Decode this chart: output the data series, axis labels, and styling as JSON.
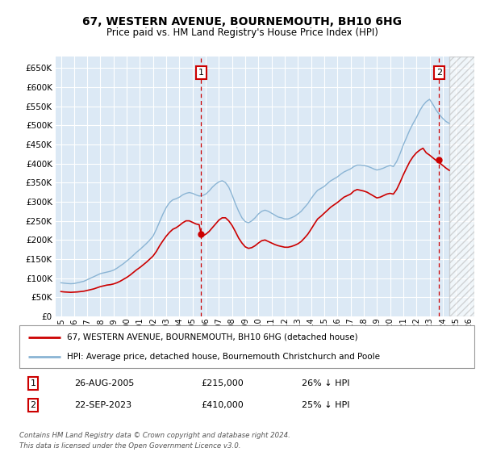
{
  "title": "67, WESTERN AVENUE, BOURNEMOUTH, BH10 6HG",
  "subtitle": "Price paid vs. HM Land Registry's House Price Index (HPI)",
  "ylim": [
    0,
    680000
  ],
  "yticks": [
    0,
    50000,
    100000,
    150000,
    200000,
    250000,
    300000,
    350000,
    400000,
    450000,
    500000,
    550000,
    600000,
    650000
  ],
  "xlim_start": 1994.6,
  "xlim_end": 2026.4,
  "background_color": "#dce9f5",
  "grid_color": "#ffffff",
  "sale1_date_label": "26-AUG-2005",
  "sale1_price": 215000,
  "sale1_hpi_pct": "26% ↓ HPI",
  "sale1_x": 2005.65,
  "sale2_date_label": "22-SEP-2023",
  "sale2_price": 410000,
  "sale2_hpi_pct": "25% ↓ HPI",
  "sale2_x": 2023.72,
  "hpi_color": "#8ab4d4",
  "price_color": "#cc0000",
  "legend_label1": "67, WESTERN AVENUE, BOURNEMOUTH, BH10 6HG (detached house)",
  "legend_label2": "HPI: Average price, detached house, Bournemouth Christchurch and Poole",
  "footer1": "Contains HM Land Registry data © Crown copyright and database right 2024.",
  "footer2": "This data is licensed under the Open Government Licence v3.0.",
  "hpi_data": [
    [
      1995.0,
      88000
    ],
    [
      1995.25,
      87000
    ],
    [
      1995.5,
      86000
    ],
    [
      1995.75,
      85500
    ],
    [
      1996.0,
      86000
    ],
    [
      1996.25,
      88000
    ],
    [
      1996.5,
      90000
    ],
    [
      1996.75,
      92000
    ],
    [
      1997.0,
      96000
    ],
    [
      1997.25,
      100000
    ],
    [
      1997.5,
      104000
    ],
    [
      1997.75,
      108000
    ],
    [
      1998.0,
      112000
    ],
    [
      1998.25,
      114000
    ],
    [
      1998.5,
      116000
    ],
    [
      1998.75,
      118000
    ],
    [
      1999.0,
      121000
    ],
    [
      1999.25,
      126000
    ],
    [
      1999.5,
      132000
    ],
    [
      1999.75,
      138000
    ],
    [
      2000.0,
      145000
    ],
    [
      2000.25,
      152000
    ],
    [
      2000.5,
      160000
    ],
    [
      2000.75,
      168000
    ],
    [
      2001.0,
      175000
    ],
    [
      2001.25,
      183000
    ],
    [
      2001.5,
      191000
    ],
    [
      2001.75,
      200000
    ],
    [
      2002.0,
      210000
    ],
    [
      2002.25,
      228000
    ],
    [
      2002.5,
      248000
    ],
    [
      2002.75,
      268000
    ],
    [
      2003.0,
      285000
    ],
    [
      2003.25,
      298000
    ],
    [
      2003.5,
      305000
    ],
    [
      2003.75,
      308000
    ],
    [
      2004.0,
      312000
    ],
    [
      2004.25,
      318000
    ],
    [
      2004.5,
      322000
    ],
    [
      2004.75,
      324000
    ],
    [
      2005.0,
      322000
    ],
    [
      2005.25,
      318000
    ],
    [
      2005.5,
      315000
    ],
    [
      2005.75,
      316000
    ],
    [
      2006.0,
      320000
    ],
    [
      2006.25,
      328000
    ],
    [
      2006.5,
      338000
    ],
    [
      2006.75,
      346000
    ],
    [
      2007.0,
      352000
    ],
    [
      2007.25,
      355000
    ],
    [
      2007.5,
      350000
    ],
    [
      2007.75,
      338000
    ],
    [
      2008.0,
      318000
    ],
    [
      2008.25,
      295000
    ],
    [
      2008.5,
      275000
    ],
    [
      2008.75,
      258000
    ],
    [
      2009.0,
      248000
    ],
    [
      2009.25,
      245000
    ],
    [
      2009.5,
      250000
    ],
    [
      2009.75,
      258000
    ],
    [
      2010.0,
      268000
    ],
    [
      2010.25,
      275000
    ],
    [
      2010.5,
      278000
    ],
    [
      2010.75,
      275000
    ],
    [
      2011.0,
      270000
    ],
    [
      2011.25,
      265000
    ],
    [
      2011.5,
      260000
    ],
    [
      2011.75,
      258000
    ],
    [
      2012.0,
      255000
    ],
    [
      2012.25,
      255000
    ],
    [
      2012.5,
      258000
    ],
    [
      2012.75,
      262000
    ],
    [
      2013.0,
      268000
    ],
    [
      2013.25,
      275000
    ],
    [
      2013.5,
      285000
    ],
    [
      2013.75,
      295000
    ],
    [
      2014.0,
      308000
    ],
    [
      2014.25,
      320000
    ],
    [
      2014.5,
      330000
    ],
    [
      2014.75,
      335000
    ],
    [
      2015.0,
      340000
    ],
    [
      2015.25,
      348000
    ],
    [
      2015.5,
      355000
    ],
    [
      2015.75,
      360000
    ],
    [
      2016.0,
      365000
    ],
    [
      2016.25,
      372000
    ],
    [
      2016.5,
      378000
    ],
    [
      2016.75,
      382000
    ],
    [
      2017.0,
      386000
    ],
    [
      2017.25,
      392000
    ],
    [
      2017.5,
      396000
    ],
    [
      2017.75,
      396000
    ],
    [
      2018.0,
      395000
    ],
    [
      2018.25,
      393000
    ],
    [
      2018.5,
      390000
    ],
    [
      2018.75,
      386000
    ],
    [
      2019.0,
      383000
    ],
    [
      2019.25,
      385000
    ],
    [
      2019.5,
      388000
    ],
    [
      2019.75,
      392000
    ],
    [
      2020.0,
      395000
    ],
    [
      2020.25,
      392000
    ],
    [
      2020.5,
      405000
    ],
    [
      2020.75,
      425000
    ],
    [
      2021.0,
      448000
    ],
    [
      2021.25,
      468000
    ],
    [
      2021.5,
      488000
    ],
    [
      2021.75,
      505000
    ],
    [
      2022.0,
      520000
    ],
    [
      2022.25,
      538000
    ],
    [
      2022.5,
      552000
    ],
    [
      2022.75,
      562000
    ],
    [
      2023.0,
      568000
    ],
    [
      2023.25,
      555000
    ],
    [
      2023.5,
      540000
    ],
    [
      2023.75,
      528000
    ],
    [
      2024.0,
      518000
    ],
    [
      2024.25,
      510000
    ],
    [
      2024.5,
      505000
    ]
  ],
  "price_data": [
    [
      1995.0,
      65000
    ],
    [
      1995.25,
      64000
    ],
    [
      1995.5,
      63500
    ],
    [
      1995.75,
      63000
    ],
    [
      1996.0,
      63500
    ],
    [
      1996.25,
      64000
    ],
    [
      1996.5,
      65000
    ],
    [
      1996.75,
      66000
    ],
    [
      1997.0,
      68000
    ],
    [
      1997.25,
      70000
    ],
    [
      1997.5,
      72000
    ],
    [
      1997.75,
      75000
    ],
    [
      1998.0,
      78000
    ],
    [
      1998.25,
      80000
    ],
    [
      1998.5,
      82000
    ],
    [
      1998.75,
      83000
    ],
    [
      1999.0,
      85000
    ],
    [
      1999.25,
      88000
    ],
    [
      1999.5,
      92000
    ],
    [
      1999.75,
      97000
    ],
    [
      2000.0,
      102000
    ],
    [
      2000.25,
      108000
    ],
    [
      2000.5,
      115000
    ],
    [
      2000.75,
      122000
    ],
    [
      2001.0,
      128000
    ],
    [
      2001.25,
      135000
    ],
    [
      2001.5,
      142000
    ],
    [
      2001.75,
      150000
    ],
    [
      2002.0,
      158000
    ],
    [
      2002.25,
      170000
    ],
    [
      2002.5,
      185000
    ],
    [
      2002.75,
      198000
    ],
    [
      2003.0,
      210000
    ],
    [
      2003.25,
      220000
    ],
    [
      2003.5,
      228000
    ],
    [
      2003.75,
      232000
    ],
    [
      2004.0,
      238000
    ],
    [
      2004.25,
      245000
    ],
    [
      2004.5,
      250000
    ],
    [
      2004.75,
      250000
    ],
    [
      2005.0,
      246000
    ],
    [
      2005.25,
      242000
    ],
    [
      2005.5,
      240000
    ],
    [
      2005.65,
      215000
    ],
    [
      2005.75,
      210000
    ],
    [
      2006.0,
      215000
    ],
    [
      2006.25,
      222000
    ],
    [
      2006.5,
      232000
    ],
    [
      2006.75,
      242000
    ],
    [
      2007.0,
      252000
    ],
    [
      2007.25,
      258000
    ],
    [
      2007.5,
      258000
    ],
    [
      2007.75,
      250000
    ],
    [
      2008.0,
      238000
    ],
    [
      2008.25,
      222000
    ],
    [
      2008.5,
      205000
    ],
    [
      2008.75,
      192000
    ],
    [
      2009.0,
      182000
    ],
    [
      2009.25,
      178000
    ],
    [
      2009.5,
      180000
    ],
    [
      2009.75,
      185000
    ],
    [
      2010.0,
      192000
    ],
    [
      2010.25,
      198000
    ],
    [
      2010.5,
      200000
    ],
    [
      2010.75,
      196000
    ],
    [
      2011.0,
      192000
    ],
    [
      2011.25,
      188000
    ],
    [
      2011.5,
      185000
    ],
    [
      2011.75,
      183000
    ],
    [
      2012.0,
      181000
    ],
    [
      2012.25,
      181000
    ],
    [
      2012.5,
      183000
    ],
    [
      2012.75,
      186000
    ],
    [
      2013.0,
      190000
    ],
    [
      2013.25,
      196000
    ],
    [
      2013.5,
      205000
    ],
    [
      2013.75,
      215000
    ],
    [
      2014.0,
      228000
    ],
    [
      2014.25,
      242000
    ],
    [
      2014.5,
      255000
    ],
    [
      2014.75,
      262000
    ],
    [
      2015.0,
      270000
    ],
    [
      2015.25,
      278000
    ],
    [
      2015.5,
      286000
    ],
    [
      2015.75,
      292000
    ],
    [
      2016.0,
      298000
    ],
    [
      2016.25,
      305000
    ],
    [
      2016.5,
      312000
    ],
    [
      2016.75,
      316000
    ],
    [
      2017.0,
      320000
    ],
    [
      2017.25,
      328000
    ],
    [
      2017.5,
      332000
    ],
    [
      2017.75,
      330000
    ],
    [
      2018.0,
      328000
    ],
    [
      2018.25,
      325000
    ],
    [
      2018.5,
      320000
    ],
    [
      2018.75,
      315000
    ],
    [
      2019.0,
      310000
    ],
    [
      2019.25,
      312000
    ],
    [
      2019.5,
      316000
    ],
    [
      2019.75,
      320000
    ],
    [
      2020.0,
      322000
    ],
    [
      2020.25,
      320000
    ],
    [
      2020.5,
      332000
    ],
    [
      2020.75,
      350000
    ],
    [
      2021.0,
      370000
    ],
    [
      2021.25,
      388000
    ],
    [
      2021.5,
      405000
    ],
    [
      2021.75,
      418000
    ],
    [
      2022.0,
      428000
    ],
    [
      2022.25,
      435000
    ],
    [
      2022.5,
      440000
    ],
    [
      2022.75,
      428000
    ],
    [
      2023.0,
      422000
    ],
    [
      2023.25,
      415000
    ],
    [
      2023.5,
      408000
    ],
    [
      2023.72,
      410000
    ],
    [
      2023.75,
      402000
    ],
    [
      2024.0,
      395000
    ],
    [
      2024.25,
      388000
    ],
    [
      2024.5,
      382000
    ]
  ],
  "hatch_start": 2024.5,
  "hatch_end": 2026.4
}
